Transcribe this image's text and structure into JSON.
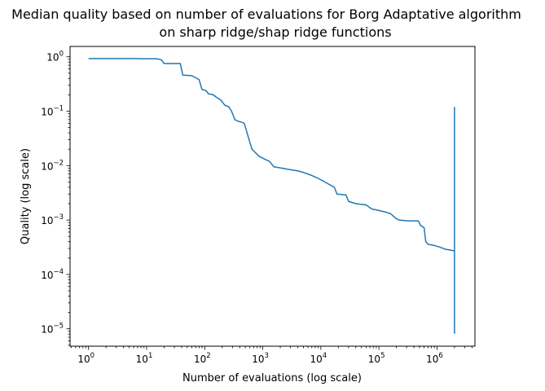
{
  "chart_data": {
    "type": "line",
    "title": "Median quality based on number of evaluations for Borg Adaptative algorithm",
    "subtitle": "on sharp ridge/shap ridge functions",
    "xlabel": "Number of evaluations (log scale)",
    "ylabel": "Quality (log scale)",
    "x_scale": "log",
    "y_scale": "log",
    "xlim": [
      0.48,
      4500000
    ],
    "ylim": [
      4.8e-06,
      1.55
    ],
    "x_ticks": [
      {
        "value": 1,
        "base": "10",
        "exp": "0"
      },
      {
        "value": 10,
        "base": "10",
        "exp": "1"
      },
      {
        "value": 100,
        "base": "10",
        "exp": "2"
      },
      {
        "value": 1000,
        "base": "10",
        "exp": "3"
      },
      {
        "value": 10000,
        "base": "10",
        "exp": "4"
      },
      {
        "value": 100000,
        "base": "10",
        "exp": "5"
      },
      {
        "value": 1000000,
        "base": "10",
        "exp": "6"
      }
    ],
    "y_ticks": [
      {
        "value": 1e-05,
        "base": "10",
        "exp": "−5"
      },
      {
        "value": 0.0001,
        "base": "10",
        "exp": "−4"
      },
      {
        "value": 0.001,
        "base": "10",
        "exp": "−3"
      },
      {
        "value": 0.01,
        "base": "10",
        "exp": "−2"
      },
      {
        "value": 0.1,
        "base": "10",
        "exp": "−1"
      },
      {
        "value": 1,
        "base": "10",
        "exp": "0"
      }
    ],
    "grid": false,
    "series": [
      {
        "color": "#1f77b4",
        "points": [
          [
            1,
            0.93
          ],
          [
            6,
            0.93
          ],
          [
            8,
            0.92
          ],
          [
            15,
            0.92
          ],
          [
            18,
            0.88
          ],
          [
            20,
            0.75
          ],
          [
            38,
            0.75
          ],
          [
            42,
            0.46
          ],
          [
            60,
            0.45
          ],
          [
            80,
            0.38
          ],
          [
            90,
            0.25
          ],
          [
            105,
            0.24
          ],
          [
            115,
            0.21
          ],
          [
            140,
            0.2
          ],
          [
            160,
            0.18
          ],
          [
            190,
            0.16
          ],
          [
            220,
            0.13
          ],
          [
            260,
            0.12
          ],
          [
            290,
            0.1
          ],
          [
            330,
            0.07
          ],
          [
            380,
            0.065
          ],
          [
            430,
            0.063
          ],
          [
            480,
            0.06
          ],
          [
            580,
            0.03
          ],
          [
            650,
            0.02
          ],
          [
            720,
            0.018
          ],
          [
            850,
            0.015
          ],
          [
            1100,
            0.013
          ],
          [
            1300,
            0.012
          ],
          [
            1550,
            0.0095
          ],
          [
            2100,
            0.009
          ],
          [
            2800,
            0.0085
          ],
          [
            4000,
            0.008
          ],
          [
            5000,
            0.0075
          ],
          [
            6500,
            0.0068
          ],
          [
            8500,
            0.006
          ],
          [
            11000,
            0.0052
          ],
          [
            14000,
            0.0045
          ],
          [
            17000,
            0.004
          ],
          [
            19000,
            0.003
          ],
          [
            27000,
            0.0029
          ],
          [
            30000,
            0.0022
          ],
          [
            40000,
            0.002
          ],
          [
            60000,
            0.0019
          ],
          [
            75000,
            0.0016
          ],
          [
            100000,
            0.0015
          ],
          [
            130000,
            0.0014
          ],
          [
            160000,
            0.0013
          ],
          [
            190000,
            0.0011
          ],
          [
            220000,
            0.001
          ],
          [
            300000,
            0.00097
          ],
          [
            480000,
            0.00096
          ],
          [
            520000,
            0.0008
          ],
          [
            600000,
            0.00072
          ],
          [
            640000,
            0.0004
          ],
          [
            700000,
            0.00036
          ],
          [
            900000,
            0.00034
          ],
          [
            1100000,
            0.00032
          ],
          [
            1400000,
            0.00029
          ],
          [
            1700000,
            0.00028
          ],
          [
            2000000,
            0.00027
          ]
        ]
      }
    ],
    "vertical_segment": {
      "x": 2000000,
      "y_min": 8.2e-06,
      "y_max": 0.12
    }
  }
}
